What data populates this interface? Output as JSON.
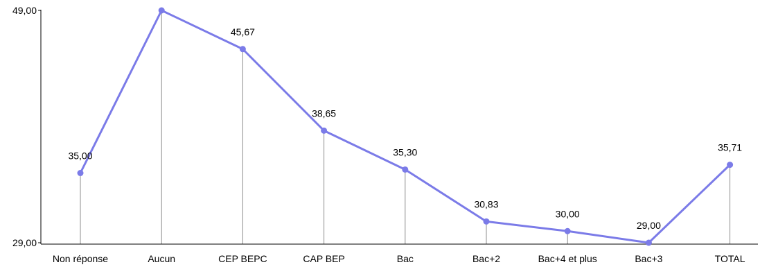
{
  "chart_data": {
    "type": "line",
    "categories": [
      "Non réponse",
      "Aucun",
      "CEP BEPC",
      "CAP BEP",
      "Bac",
      "Bac+2",
      "Bac+4 et plus",
      "Bac+3",
      "TOTAL"
    ],
    "series": [
      {
        "values": [
          35.0,
          49.0,
          45.67,
          38.65,
          35.3,
          30.83,
          30.0,
          29.0,
          35.71
        ]
      }
    ],
    "data_labels": [
      "35,00",
      "",
      "45,67",
      "38,65",
      "35,30",
      "30,83",
      "30,00",
      "29,00",
      "35,71"
    ],
    "yticks": [
      {
        "value": 29.0,
        "label": "29,00"
      },
      {
        "value": 49.0,
        "label": "49,00"
      }
    ],
    "ylim": [
      29.0,
      49.0
    ],
    "drop_lines": true,
    "grid": false,
    "line_color": "#7b7be8",
    "marker_color": "#7b7be8",
    "drop_line_color": "#8c8c8c",
    "axis_color": "#000000"
  }
}
